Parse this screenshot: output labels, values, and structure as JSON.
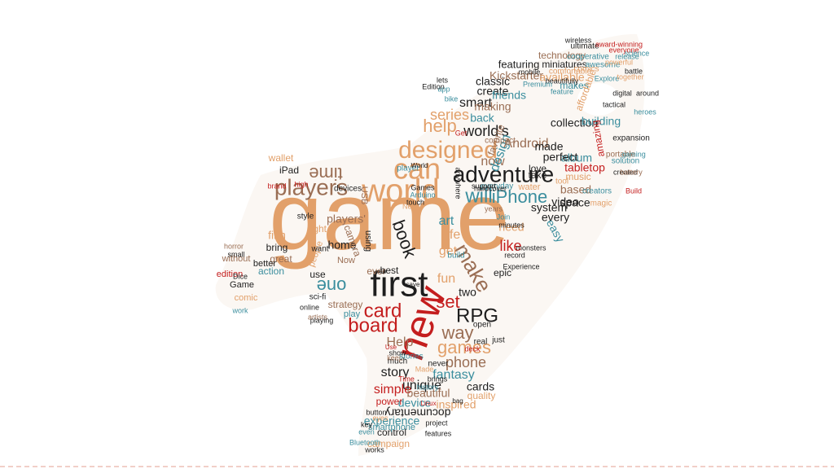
{
  "palette": {
    "orange": "#e2a06a",
    "black": "#1e1e1e",
    "teal": "#3b8e9e",
    "red": "#c41e1e",
    "brown": "#9a6e54",
    "background": "#ffffff"
  },
  "shape": "rocket-silhouette",
  "words": [
    {
      "text": "game",
      "color": "orange",
      "rot": 0
    },
    {
      "text": "first",
      "color": "black",
      "rot": 0
    },
    {
      "text": "new",
      "color": "red",
      "rot": -70
    },
    {
      "text": "world",
      "color": "orange",
      "rot": 0
    },
    {
      "text": "can",
      "color": "orange",
      "rot": 0
    },
    {
      "text": "adventure",
      "color": "black",
      "rot": 0
    },
    {
      "text": "designed",
      "color": "orange",
      "rot": 0
    },
    {
      "text": "players",
      "color": "brown",
      "rot": 0
    },
    {
      "text": "time",
      "color": "brown",
      "rot": 180
    },
    {
      "text": "will",
      "color": "teal",
      "rot": 0
    },
    {
      "text": "iPhone",
      "color": "teal",
      "rot": 0
    },
    {
      "text": "make",
      "color": "brown",
      "rot": 60
    },
    {
      "text": "card",
      "color": "red",
      "rot": 0
    },
    {
      "text": "board",
      "color": "red",
      "rot": 0
    },
    {
      "text": "RPG",
      "color": "black",
      "rot": 0
    },
    {
      "text": "one",
      "color": "teal",
      "rot": 180
    },
    {
      "text": "book",
      "color": "black",
      "rot": 70
    },
    {
      "text": "games",
      "color": "orange",
      "rot": 0
    },
    {
      "text": "way",
      "color": "brown",
      "rot": 0
    },
    {
      "text": "set",
      "color": "red",
      "rot": 0
    },
    {
      "text": "help",
      "color": "orange",
      "rot": 0
    },
    {
      "text": "series",
      "color": "orange",
      "rot": 0
    },
    {
      "text": "world's",
      "color": "black",
      "rot": 0
    },
    {
      "text": "now",
      "color": "brown",
      "rot": 0
    },
    {
      "text": "design",
      "color": "teal",
      "rot": -70
    },
    {
      "text": "Android",
      "color": "brown",
      "rot": 0
    },
    {
      "text": "made",
      "color": "black",
      "rot": 0
    },
    {
      "text": "phone",
      "color": "brown",
      "rot": 0
    },
    {
      "text": "story",
      "color": "black",
      "rot": 0
    },
    {
      "text": "unique",
      "color": "black",
      "rot": 0
    },
    {
      "text": "fantasy",
      "color": "teal",
      "rot": 0
    },
    {
      "text": "Help",
      "color": "brown",
      "rot": 0
    },
    {
      "text": "simple",
      "color": "red",
      "rot": 0
    },
    {
      "text": "beautiful",
      "color": "brown",
      "rot": 0
    },
    {
      "text": "device",
      "color": "teal",
      "rot": 0
    },
    {
      "text": "inspired",
      "color": "orange",
      "rot": 0
    },
    {
      "text": "experience",
      "color": "teal",
      "rot": 0
    },
    {
      "text": "documentary",
      "color": "black",
      "rot": 180
    },
    {
      "text": "control",
      "color": "black",
      "rot": 0
    },
    {
      "text": "campaign",
      "color": "orange",
      "rot": 0
    },
    {
      "text": "smartphone",
      "color": "teal",
      "rot": 0
    },
    {
      "text": "cards",
      "color": "black",
      "rot": 0
    },
    {
      "text": "quality",
      "color": "orange",
      "rot": 0
    },
    {
      "text": "power",
      "color": "red",
      "rot": 0
    },
    {
      "text": "life",
      "color": "orange",
      "rot": 0
    },
    {
      "text": "art",
      "color": "teal",
      "rot": 0
    },
    {
      "text": "get",
      "color": "orange",
      "rot": 0
    },
    {
      "text": "fun",
      "color": "orange",
      "rot": 0
    },
    {
      "text": "two",
      "color": "black",
      "rot": 0
    },
    {
      "text": "like",
      "color": "red",
      "rot": 0
    },
    {
      "text": "need",
      "color": "orange",
      "rot": 0
    },
    {
      "text": "every",
      "color": "black",
      "rot": 0
    },
    {
      "text": "system",
      "color": "black",
      "rot": 0
    },
    {
      "text": "based",
      "color": "brown",
      "rot": 0
    },
    {
      "text": "space",
      "color": "black",
      "rot": 0
    },
    {
      "text": "video",
      "color": "black",
      "rot": 0
    },
    {
      "text": "album",
      "color": "teal",
      "rot": 0
    },
    {
      "text": "tabletop",
      "color": "red",
      "rot": 0
    },
    {
      "text": "perfect",
      "color": "black",
      "rot": 0
    },
    {
      "text": "easy",
      "color": "teal",
      "rot": 60
    },
    {
      "text": "music",
      "color": "orange",
      "rot": 0
    },
    {
      "text": "love",
      "color": "black",
      "rot": 0
    },
    {
      "text": "take",
      "color": "black",
      "rot": 0
    },
    {
      "text": "smart",
      "color": "black",
      "rot": 0
    },
    {
      "text": "making",
      "color": "brown",
      "rot": 0
    },
    {
      "text": "create",
      "color": "black",
      "rot": 0
    },
    {
      "text": "back",
      "color": "teal",
      "rot": 0
    },
    {
      "text": "friends",
      "color": "teal",
      "rot": 0
    },
    {
      "text": "classic",
      "color": "black",
      "rot": 0
    },
    {
      "text": "Kickstarter",
      "color": "brown",
      "rot": 0
    },
    {
      "text": "available",
      "color": "orange",
      "rot": 0
    },
    {
      "text": "featuring",
      "color": "black",
      "rot": 0
    },
    {
      "text": "miniatures",
      "color": "black",
      "rot": 0
    },
    {
      "text": "makes",
      "color": "teal",
      "rot": 0
    },
    {
      "text": "technology",
      "color": "brown",
      "rot": 0
    },
    {
      "text": "collection",
      "color": "black",
      "rot": 0
    },
    {
      "text": "affordable",
      "color": "orange",
      "rot": -70
    },
    {
      "text": "building",
      "color": "teal",
      "rot": 0
    },
    {
      "text": "amazing",
      "color": "red",
      "rot": -100
    },
    {
      "text": "favorite",
      "color": "brown",
      "rot": -70
    },
    {
      "text": "iPad",
      "color": "black",
      "rot": 0
    },
    {
      "text": "wallet",
      "color": "orange",
      "rot": 0
    },
    {
      "text": "players'",
      "color": "brown",
      "rot": 0
    },
    {
      "text": "film",
      "color": "orange",
      "rot": 0
    },
    {
      "text": "light",
      "color": "orange",
      "rot": 0
    },
    {
      "text": "home",
      "color": "black",
      "rot": 0
    },
    {
      "text": "ever",
      "color": "brown",
      "rot": 0
    },
    {
      "text": "best",
      "color": "black",
      "rot": 0
    },
    {
      "text": "use",
      "color": "black",
      "rot": 0
    },
    {
      "text": "action",
      "color": "teal",
      "rot": 0
    },
    {
      "text": "great",
      "color": "brown",
      "rot": 0
    },
    {
      "text": "bring",
      "color": "black",
      "rot": 0
    },
    {
      "text": "better",
      "color": "black",
      "rot": 0
    },
    {
      "text": "without",
      "color": "brown",
      "rot": 0
    },
    {
      "text": "edition",
      "color": "red",
      "rot": 0
    },
    {
      "text": "Game",
      "color": "black",
      "rot": 0
    },
    {
      "text": "comic",
      "color": "orange",
      "rot": 0
    },
    {
      "text": "strategy",
      "color": "brown",
      "rot": 0
    },
    {
      "text": "play",
      "color": "teal",
      "rot": 0
    },
    {
      "text": "epic",
      "color": "black",
      "rot": 0
    },
    {
      "text": "Now",
      "color": "brown",
      "rot": 0
    },
    {
      "text": "people",
      "color": "orange",
      "rot": -70
    },
    {
      "text": "camera",
      "color": "brown",
      "rot": 70
    },
    {
      "text": "using",
      "color": "black",
      "rot": 90
    },
    {
      "text": "USB",
      "color": "brown",
      "rot": 90
    },
    {
      "text": "devices",
      "color": "black",
      "rot": 0
    },
    {
      "text": "water",
      "color": "orange",
      "rot": 0
    },
    {
      "text": "tool",
      "color": "orange",
      "rot": 0
    },
    {
      "text": "creators",
      "color": "teal",
      "rot": 0
    },
    {
      "text": "magic",
      "color": "orange",
      "rot": 0
    },
    {
      "text": "portable",
      "color": "brown",
      "rot": 0
    },
    {
      "text": "expansion",
      "color": "black",
      "rot": 0
    },
    {
      "text": "solution",
      "color": "teal",
      "rot": 0
    },
    {
      "text": "created",
      "color": "black",
      "rot": 0
    },
    {
      "text": "gaming",
      "color": "teal",
      "rot": 0
    },
    {
      "text": "Build",
      "color": "red",
      "rot": 0
    },
    {
      "text": "battery",
      "color": "brown",
      "rot": 0
    },
    {
      "text": "awesome",
      "color": "teal",
      "rot": 0
    },
    {
      "text": "cooperative",
      "color": "teal",
      "rot": 0
    },
    {
      "text": "ultimate",
      "color": "black",
      "rot": 0
    },
    {
      "text": "award-winning",
      "color": "red",
      "rot": 0
    },
    {
      "text": "wireless",
      "color": "black",
      "rot": 0
    },
    {
      "text": "release",
      "color": "teal",
      "rot": 0
    },
    {
      "text": "everyone",
      "color": "red",
      "rot": 0
    },
    {
      "text": "comics",
      "color": "orange",
      "rot": 0
    },
    {
      "text": "Explore",
      "color": "teal",
      "rot": 0
    },
    {
      "text": "comfortable",
      "color": "orange",
      "rot": 0
    },
    {
      "text": "beautifully",
      "color": "black",
      "rot": 0
    },
    {
      "text": "mobile",
      "color": "black",
      "rot": 0
    },
    {
      "text": "feature",
      "color": "teal",
      "rot": 0
    },
    {
      "text": "powerful",
      "color": "orange",
      "rot": 0
    },
    {
      "text": "together",
      "color": "orange",
      "rot": 0
    },
    {
      "text": "science",
      "color": "teal",
      "rot": 0
    },
    {
      "text": "battle",
      "color": "black",
      "rot": 0
    },
    {
      "text": "compact",
      "color": "brown",
      "rot": 0
    },
    {
      "text": "everyday",
      "color": "teal",
      "rot": 0
    },
    {
      "text": "years",
      "color": "brown",
      "rot": 0
    },
    {
      "text": "real",
      "color": "black",
      "rot": 0
    },
    {
      "text": "just",
      "color": "black",
      "rot": 0
    },
    {
      "text": "open",
      "color": "black",
      "rot": 0
    },
    {
      "text": "deck",
      "color": "red",
      "rot": 0
    },
    {
      "text": "much",
      "color": "black",
      "rot": 0
    },
    {
      "text": "never",
      "color": "black",
      "rot": 0
    },
    {
      "text": "keep",
      "color": "brown",
      "rot": 0
    },
    {
      "text": "stories",
      "color": "teal",
      "rot": 0
    },
    {
      "text": "show",
      "color": "black",
      "rot": 0
    },
    {
      "text": "build",
      "color": "teal",
      "rot": 0
    },
    {
      "text": "New",
      "color": "orange",
      "rot": 0
    },
    {
      "text": "bike",
      "color": "teal",
      "rot": 0
    },
    {
      "text": "want",
      "color": "black",
      "rot": 0
    },
    {
      "text": "sci-fi",
      "color": "black",
      "rot": 0
    },
    {
      "text": "small",
      "color": "black",
      "rot": 0
    },
    {
      "text": "horror",
      "color": "brown",
      "rot": 0
    },
    {
      "text": "style",
      "color": "black",
      "rot": 0
    },
    {
      "text": "Dice",
      "color": "black",
      "rot": 0
    },
    {
      "text": "online",
      "color": "black",
      "rot": 0
    },
    {
      "text": "artists",
      "color": "brown",
      "rot": 0
    },
    {
      "text": "playing",
      "color": "black",
      "rot": 0
    },
    {
      "text": "work",
      "color": "teal",
      "rot": 0
    },
    {
      "text": "high",
      "color": "red",
      "rot": 0
    },
    {
      "text": "brand",
      "color": "red",
      "rot": 0
    },
    {
      "text": "player",
      "color": "teal",
      "rot": 0
    },
    {
      "text": "support",
      "color": "black",
      "rot": 0
    },
    {
      "text": "button",
      "color": "black",
      "rot": 0
    },
    {
      "text": "eyes",
      "color": "orange",
      "rot": 0
    },
    {
      "text": "key",
      "color": "black",
      "rot": 0
    },
    {
      "text": "even",
      "color": "teal",
      "rot": 0
    },
    {
      "text": "Bluetooth",
      "color": "teal",
      "rot": 0
    },
    {
      "text": "works",
      "color": "black",
      "rot": 0
    },
    {
      "text": "features",
      "color": "black",
      "rot": 0
    },
    {
      "text": "project",
      "color": "black",
      "rot": 0
    },
    {
      "text": "history",
      "color": "teal",
      "rot": 0
    },
    {
      "text": "Made",
      "color": "orange",
      "rot": 0
    },
    {
      "text": "brings",
      "color": "black",
      "rot": 0
    },
    {
      "text": "minutes",
      "color": "black",
      "rot": 0
    },
    {
      "text": "record",
      "color": "black",
      "rot": 0
    },
    {
      "text": "monsters",
      "color": "black",
      "rot": 0
    },
    {
      "text": "hardcover",
      "color": "black",
      "rot": 0
    },
    {
      "text": "Join",
      "color": "teal",
      "rot": 0
    },
    {
      "text": "lets",
      "color": "black",
      "rot": 0
    },
    {
      "text": "app",
      "color": "teal",
      "rot": 0
    },
    {
      "text": "Edition",
      "color": "black",
      "rot": 0
    },
    {
      "text": "anywhere",
      "color": "black",
      "rot": 90
    },
    {
      "text": "digital",
      "color": "black",
      "rot": 0
    },
    {
      "text": "around",
      "color": "black",
      "rot": 0
    },
    {
      "text": "tactical",
      "color": "black",
      "rot": 0
    },
    {
      "text": "heroes",
      "color": "teal",
      "rot": 0
    },
    {
      "text": "Premium",
      "color": "teal",
      "rot": 0
    },
    {
      "text": "World",
      "color": "black",
      "rot": 0
    },
    {
      "text": "Experience",
      "color": "black",
      "rot": 0
    },
    {
      "text": "Arduino",
      "color": "teal",
      "rot": 0
    },
    {
      "text": "Games",
      "color": "black",
      "rot": 0
    },
    {
      "text": "touch",
      "color": "black",
      "rot": 0
    },
    {
      "text": "Time",
      "color": "red",
      "rot": 0
    },
    {
      "text": "Get",
      "color": "red",
      "rot": 0
    },
    {
      "text": "Use",
      "color": "red",
      "rot": 0
    },
    {
      "text": "save",
      "color": "black",
      "rot": 0
    },
    {
      "text": "Linux",
      "color": "red",
      "rot": 0
    },
    {
      "text": "bag",
      "color": "black",
      "rot": 0
    },
    {
      "text": "kids",
      "color": "black",
      "rot": 0
    },
    {
      "text": "page",
      "color": "black",
      "rot": 0
    },
    {
      "text": "last",
      "color": "black",
      "rot": 0
    }
  ]
}
